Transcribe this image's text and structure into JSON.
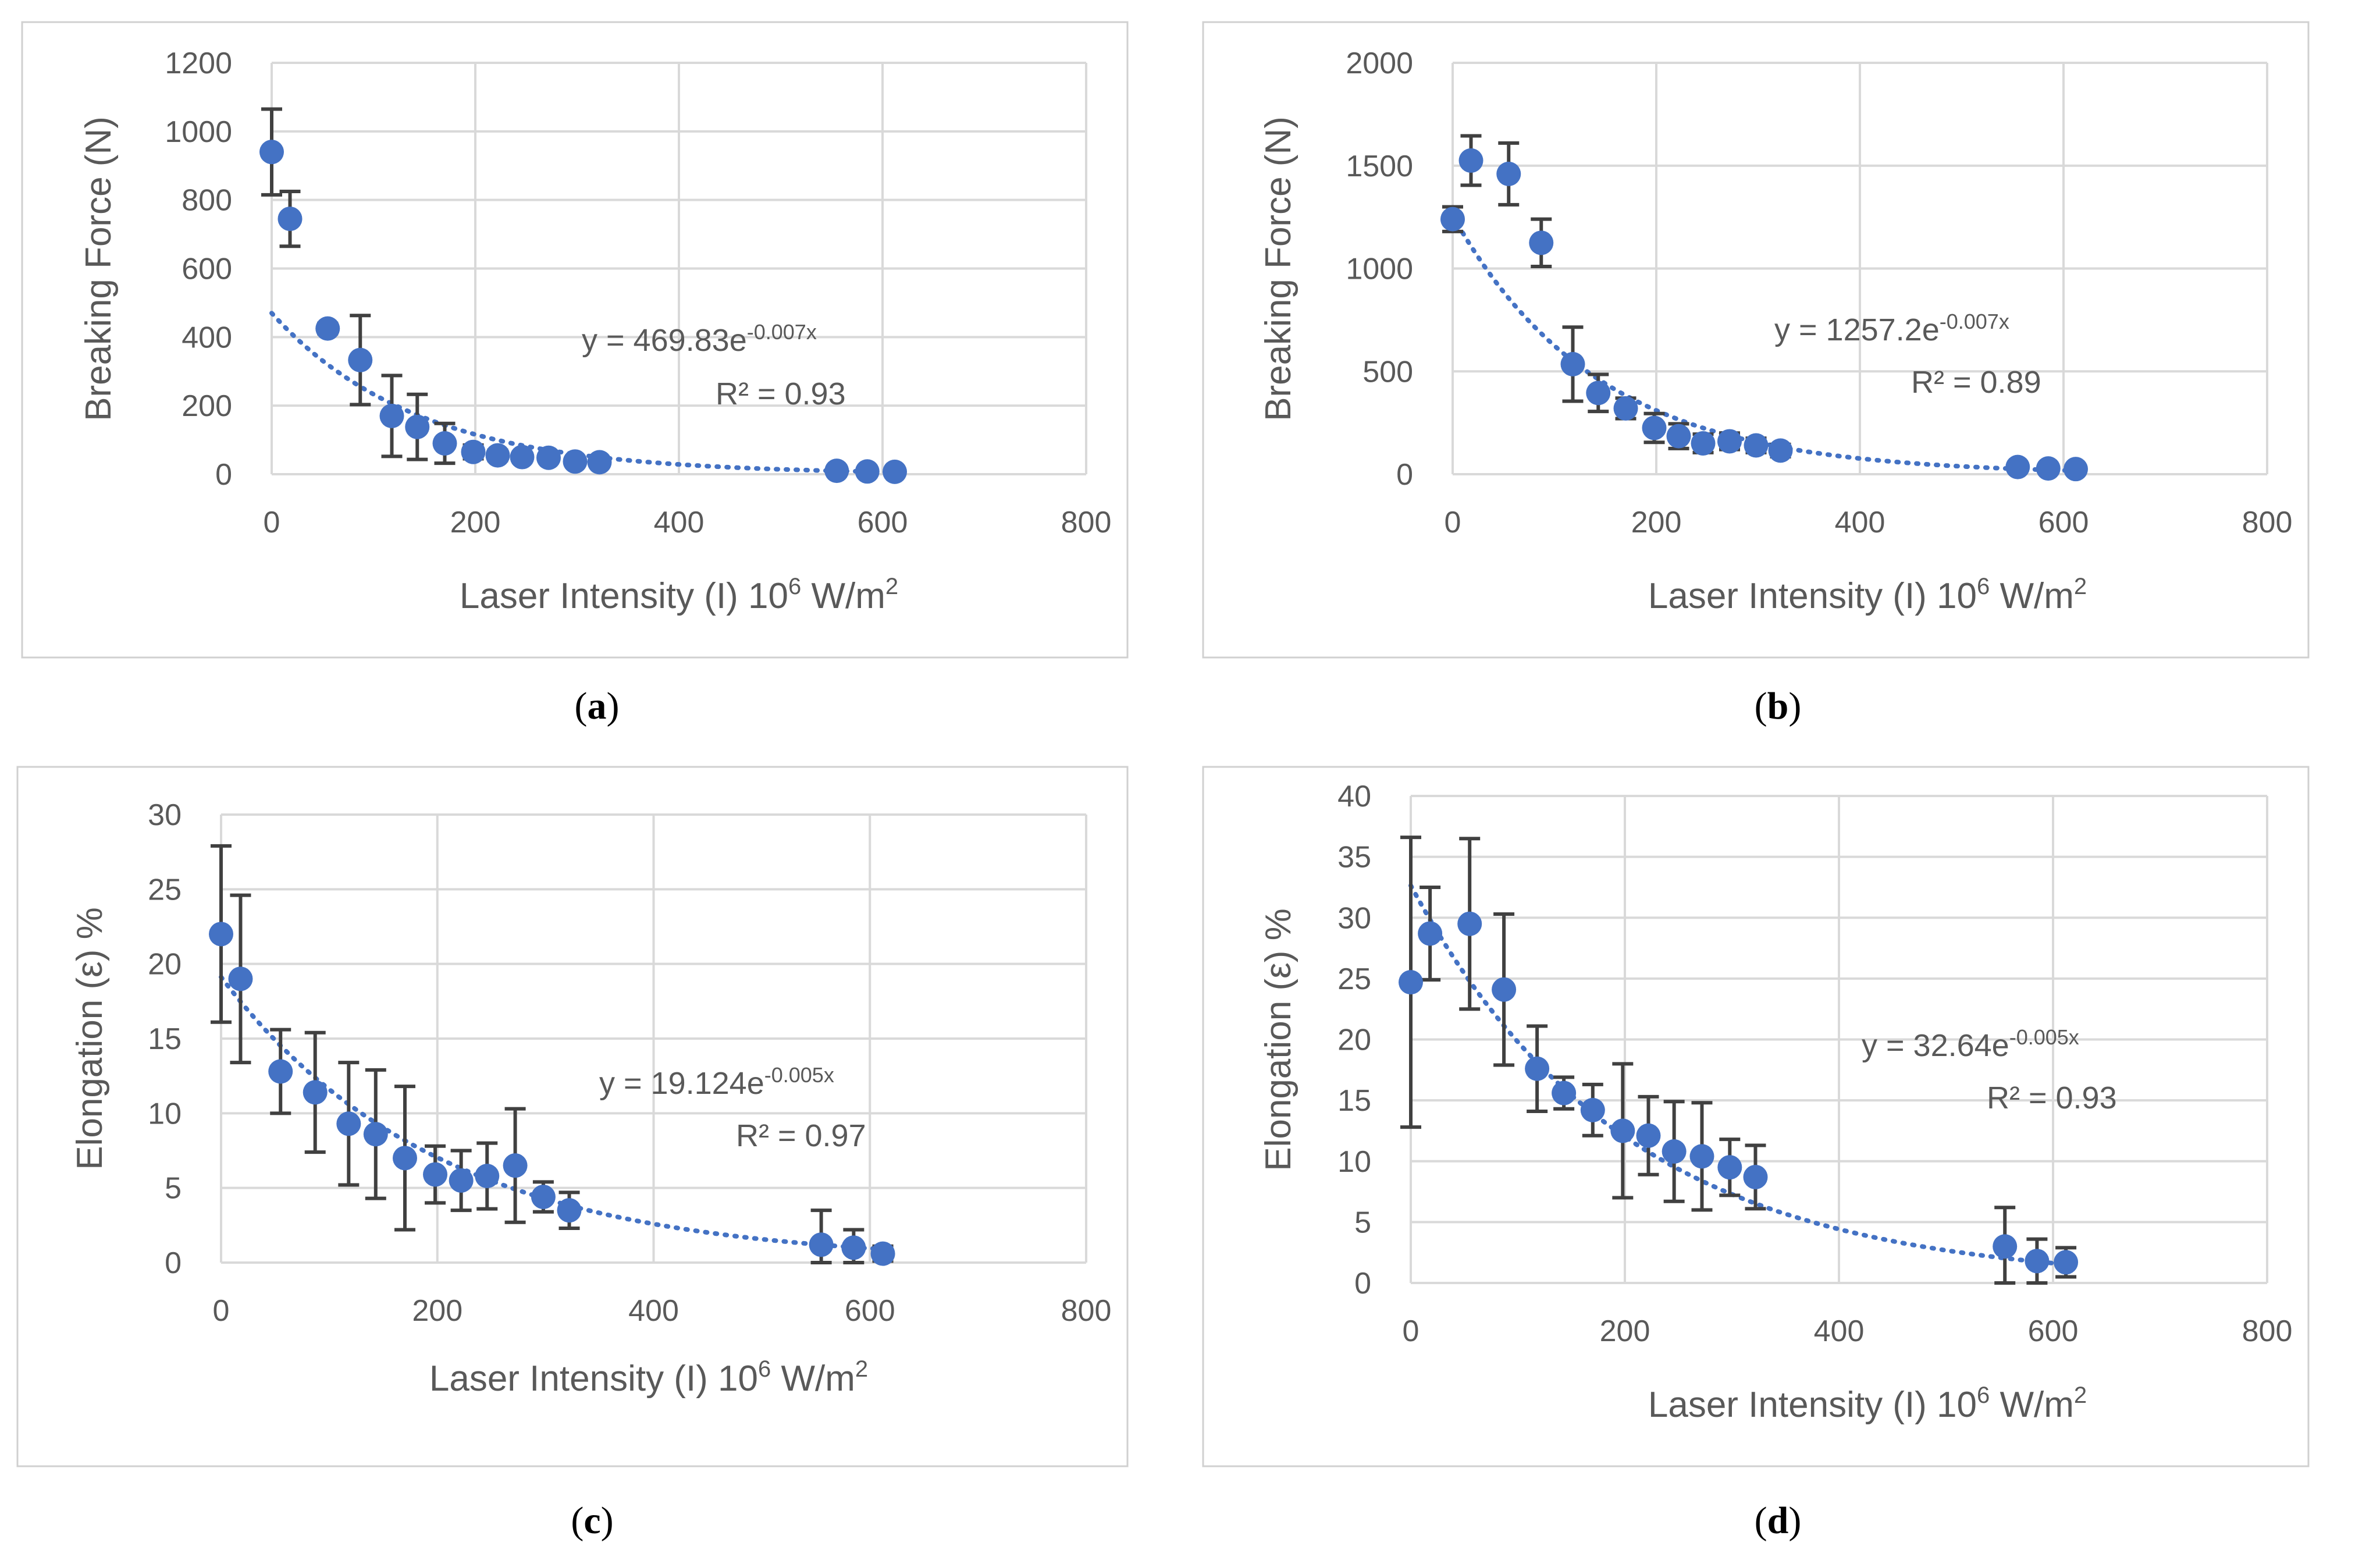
{
  "chart_data": [
    {
      "type": "scatter",
      "id": "a",
      "caption": "a",
      "xlabel_prefix": "Laser Intensity (I) 10",
      "xlabel_exp": "6",
      "xlabel_mid": " W/m",
      "xlabel_exp2": "2",
      "ylabel": "Breaking Force (N)",
      "xlim": [
        0,
        800
      ],
      "ylim": [
        0,
        1200
      ],
      "xticks": [
        0,
        200,
        400,
        600,
        800
      ],
      "yticks": [
        0,
        200,
        400,
        600,
        800,
        1000,
        1200
      ],
      "points": [
        {
          "x": 0,
          "y": 940,
          "err": 125
        },
        {
          "x": 18,
          "y": 745,
          "err": 80
        },
        {
          "x": 55,
          "y": 425,
          "err": 15
        },
        {
          "x": 87,
          "y": 333,
          "err": 130
        },
        {
          "x": 118,
          "y": 170,
          "err": 118
        },
        {
          "x": 143,
          "y": 138,
          "err": 95
        },
        {
          "x": 170,
          "y": 90,
          "err": 58
        },
        {
          "x": 198,
          "y": 65,
          "err": 20
        },
        {
          "x": 222,
          "y": 55,
          "err": 15
        },
        {
          "x": 246,
          "y": 50,
          "err": 12
        },
        {
          "x": 272,
          "y": 48,
          "err": 10
        },
        {
          "x": 298,
          "y": 37,
          "err": 8
        },
        {
          "x": 322,
          "y": 35,
          "err": 8
        },
        {
          "x": 555,
          "y": 10,
          "err": 5
        },
        {
          "x": 585,
          "y": 8,
          "err": 5
        },
        {
          "x": 612,
          "y": 7,
          "err": 5
        }
      ],
      "trend": {
        "a": 469.83,
        "b": 0.007,
        "x0": 0,
        "x1": 612
      },
      "equation": "y = 469.83e",
      "equation_exp": "-0.007x",
      "r2": "R² = 0.93"
    },
    {
      "type": "scatter",
      "id": "b",
      "caption": "b",
      "xlabel_prefix": "Laser Intensity (I) 10",
      "xlabel_exp": "6",
      "xlabel_mid": " W/m",
      "xlabel_exp2": "2",
      "ylabel": "Breaking Force (N)",
      "xlim": [
        0,
        800
      ],
      "ylim": [
        0,
        2000
      ],
      "xticks": [
        0,
        200,
        400,
        600,
        800
      ],
      "yticks": [
        0,
        500,
        1000,
        1500,
        2000
      ],
      "points": [
        {
          "x": 0,
          "y": 1240,
          "err": 60
        },
        {
          "x": 18,
          "y": 1525,
          "err": 120
        },
        {
          "x": 55,
          "y": 1460,
          "err": 150
        },
        {
          "x": 87,
          "y": 1125,
          "err": 115
        },
        {
          "x": 118,
          "y": 535,
          "err": 180
        },
        {
          "x": 143,
          "y": 395,
          "err": 90
        },
        {
          "x": 170,
          "y": 320,
          "err": 50
        },
        {
          "x": 198,
          "y": 225,
          "err": 70
        },
        {
          "x": 222,
          "y": 185,
          "err": 60
        },
        {
          "x": 246,
          "y": 150,
          "err": 45
        },
        {
          "x": 272,
          "y": 160,
          "err": 40
        },
        {
          "x": 298,
          "y": 140,
          "err": 35
        },
        {
          "x": 322,
          "y": 115,
          "err": 30
        },
        {
          "x": 555,
          "y": 35,
          "err": 15
        },
        {
          "x": 585,
          "y": 28,
          "err": 10
        },
        {
          "x": 612,
          "y": 25,
          "err": 10
        }
      ],
      "trend": {
        "a": 1257.2,
        "b": 0.007,
        "x0": 0,
        "x1": 612
      },
      "equation": "y = 1257.2e",
      "equation_exp": "-0.007x",
      "r2": "R² = 0.89"
    },
    {
      "type": "scatter",
      "id": "c",
      "caption": "c",
      "xlabel_prefix": "Laser Intensity (I) 10",
      "xlabel_exp": "6",
      "xlabel_mid": " W/m",
      "xlabel_exp2": "2",
      "ylabel": "Elongation (ε) %",
      "xlim": [
        0,
        800
      ],
      "ylim": [
        0,
        30
      ],
      "xticks": [
        0,
        200,
        400,
        600,
        800
      ],
      "yticks": [
        0,
        5,
        10,
        15,
        20,
        25,
        30
      ],
      "points": [
        {
          "x": 0,
          "y": 22.0,
          "err": 5.9
        },
        {
          "x": 18,
          "y": 19.0,
          "err": 5.6
        },
        {
          "x": 55,
          "y": 12.8,
          "err": 2.8
        },
        {
          "x": 87,
          "y": 11.4,
          "err": 4.0
        },
        {
          "x": 118,
          "y": 9.3,
          "err": 4.1
        },
        {
          "x": 143,
          "y": 8.6,
          "err": 4.3
        },
        {
          "x": 170,
          "y": 7.0,
          "err": 4.8
        },
        {
          "x": 198,
          "y": 5.9,
          "err": 1.9
        },
        {
          "x": 222,
          "y": 5.5,
          "err": 2.0
        },
        {
          "x": 246,
          "y": 5.8,
          "err": 2.2
        },
        {
          "x": 272,
          "y": 6.5,
          "err": 3.8
        },
        {
          "x": 298,
          "y": 4.4,
          "err": 1.0
        },
        {
          "x": 322,
          "y": 3.5,
          "err": 1.2
        },
        {
          "x": 555,
          "y": 1.2,
          "err": 2.3
        },
        {
          "x": 585,
          "y": 1.0,
          "err": 1.2
        },
        {
          "x": 612,
          "y": 0.6,
          "err": 0.5
        }
      ],
      "trend": {
        "a": 19.124,
        "b": 0.005,
        "x0": 0,
        "x1": 612
      },
      "equation": "y = 19.124e",
      "equation_exp": "-0.005x",
      "r2": "R² = 0.97"
    },
    {
      "type": "scatter",
      "id": "d",
      "caption": "d",
      "xlabel_prefix": "Laser Intensity (I) 10",
      "xlabel_exp": "6",
      "xlabel_mid": " W/m",
      "xlabel_exp2": "2",
      "ylabel": "Elongation (ε) %",
      "xlim": [
        0,
        800
      ],
      "ylim": [
        0,
        40
      ],
      "xticks": [
        0,
        200,
        400,
        600,
        800
      ],
      "yticks": [
        0,
        5,
        10,
        15,
        20,
        25,
        30,
        35,
        40
      ],
      "points": [
        {
          "x": 0,
          "y": 24.7,
          "err": 11.9
        },
        {
          "x": 18,
          "y": 28.7,
          "err": 3.8
        },
        {
          "x": 55,
          "y": 29.5,
          "err": 7.0
        },
        {
          "x": 87,
          "y": 24.1,
          "err": 6.2
        },
        {
          "x": 118,
          "y": 17.6,
          "err": 3.5
        },
        {
          "x": 143,
          "y": 15.6,
          "err": 1.3
        },
        {
          "x": 170,
          "y": 14.2,
          "err": 2.1
        },
        {
          "x": 198,
          "y": 12.5,
          "err": 5.5
        },
        {
          "x": 222,
          "y": 12.1,
          "err": 3.2
        },
        {
          "x": 246,
          "y": 10.8,
          "err": 4.1
        },
        {
          "x": 272,
          "y": 10.4,
          "err": 4.4
        },
        {
          "x": 298,
          "y": 9.5,
          "err": 2.3
        },
        {
          "x": 322,
          "y": 8.7,
          "err": 2.6
        },
        {
          "x": 555,
          "y": 3.0,
          "err": 3.2
        },
        {
          "x": 585,
          "y": 1.8,
          "err": 1.8
        },
        {
          "x": 612,
          "y": 1.7,
          "err": 1.2
        }
      ],
      "trend": {
        "a": 32.64,
        "b": 0.005,
        "x0": 0,
        "x1": 612
      },
      "equation": "y = 32.64e",
      "equation_exp": "-0.005x",
      "r2": "R² = 0.93"
    }
  ]
}
